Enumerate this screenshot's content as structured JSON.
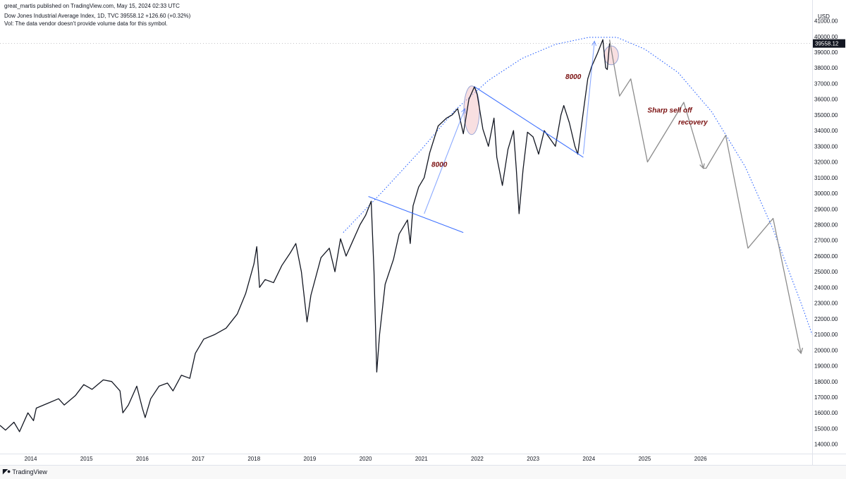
{
  "header": {
    "published": "great_martis published on TradingView.com, May 15, 2024 02:33 UTC",
    "symbol_line": "Dow Jones Industrial Average Index, 1D, TVC  39558.12  +126.60 (+0.32%)",
    "volume_note": "Vol: The data vendor doesn't provide volume data for this symbol."
  },
  "footer": {
    "brand": "TradingView",
    "logo_icon": "tradingview-logo-icon"
  },
  "colors": {
    "price": "#131722",
    "trend": "#2962ff",
    "projection": "#8c8c8c",
    "arc": "#2962ff",
    "annotation": "#7a1010",
    "circle": "#f2c4c8"
  },
  "chart_data": {
    "type": "line",
    "title": "",
    "xlabel": "",
    "ylabel": "USD",
    "currency": "USD",
    "last_price": "39558.12",
    "x_ticks": [
      "2014",
      "2015",
      "2016",
      "2017",
      "2018",
      "2019",
      "2020",
      "2021",
      "2022",
      "2023",
      "2024",
      "2025",
      "2026"
    ],
    "y_ticks": [
      "14000.00",
      "15000.00",
      "16000.00",
      "17000.00",
      "18000.00",
      "19000.00",
      "20000.00",
      "21000.00",
      "22000.00",
      "23000.00",
      "24000.00",
      "25000.00",
      "26000.00",
      "27000.00",
      "28000.00",
      "29000.00",
      "30000.00",
      "31000.00",
      "32000.00",
      "33000.00",
      "34000.00",
      "35000.00",
      "36000.00",
      "37000.00",
      "38000.00",
      "39000.00",
      "40000.00",
      "41000.00"
    ],
    "ylim": [
      13400,
      41700
    ],
    "xlim": [
      2013.45,
      2028.0
    ],
    "series": [
      {
        "kind": "price",
        "points": [
          [
            2013.45,
            15200
          ],
          [
            2013.55,
            14900
          ],
          [
            2013.7,
            15400
          ],
          [
            2013.8,
            14800
          ],
          [
            2013.95,
            16000
          ],
          [
            2014.05,
            15500
          ],
          [
            2014.1,
            16300
          ],
          [
            2014.3,
            16600
          ],
          [
            2014.5,
            16900
          ],
          [
            2014.6,
            16500
          ],
          [
            2014.8,
            17100
          ],
          [
            2014.95,
            17800
          ],
          [
            2015.1,
            17500
          ],
          [
            2015.3,
            18100
          ],
          [
            2015.45,
            18000
          ],
          [
            2015.6,
            17400
          ],
          [
            2015.65,
            16000
          ],
          [
            2015.75,
            16500
          ],
          [
            2015.9,
            17700
          ],
          [
            2016.0,
            16300
          ],
          [
            2016.05,
            15700
          ],
          [
            2016.15,
            16900
          ],
          [
            2016.3,
            17700
          ],
          [
            2016.45,
            17900
          ],
          [
            2016.55,
            17400
          ],
          [
            2016.7,
            18400
          ],
          [
            2016.85,
            18200
          ],
          [
            2016.95,
            19800
          ],
          [
            2017.1,
            20700
          ],
          [
            2017.3,
            21000
          ],
          [
            2017.5,
            21400
          ],
          [
            2017.7,
            22300
          ],
          [
            2017.85,
            23600
          ],
          [
            2018.0,
            25500
          ],
          [
            2018.05,
            26600
          ],
          [
            2018.1,
            24000
          ],
          [
            2018.2,
            24500
          ],
          [
            2018.35,
            24300
          ],
          [
            2018.5,
            25400
          ],
          [
            2018.65,
            26200
          ],
          [
            2018.75,
            26800
          ],
          [
            2018.85,
            25000
          ],
          [
            2018.95,
            21800
          ],
          [
            2019.02,
            23500
          ],
          [
            2019.2,
            25900
          ],
          [
            2019.35,
            26500
          ],
          [
            2019.45,
            25000
          ],
          [
            2019.55,
            27100
          ],
          [
            2019.65,
            26000
          ],
          [
            2019.75,
            26800
          ],
          [
            2019.9,
            28000
          ],
          [
            2020.0,
            28600
          ],
          [
            2020.1,
            29500
          ],
          [
            2020.15,
            25000
          ],
          [
            2020.2,
            18600
          ],
          [
            2020.25,
            21000
          ],
          [
            2020.35,
            24200
          ],
          [
            2020.5,
            25800
          ],
          [
            2020.6,
            27400
          ],
          [
            2020.75,
            28300
          ],
          [
            2020.8,
            26800
          ],
          [
            2020.85,
            29200
          ],
          [
            2020.95,
            30400
          ],
          [
            2021.05,
            31000
          ],
          [
            2021.15,
            32600
          ],
          [
            2021.3,
            34300
          ],
          [
            2021.45,
            34800
          ],
          [
            2021.55,
            35000
          ],
          [
            2021.65,
            35400
          ],
          [
            2021.75,
            33800
          ],
          [
            2021.85,
            36000
          ],
          [
            2021.95,
            36800
          ],
          [
            2022.0,
            36300
          ],
          [
            2022.1,
            34100
          ],
          [
            2022.2,
            33000
          ],
          [
            2022.3,
            34800
          ],
          [
            2022.35,
            32300
          ],
          [
            2022.45,
            30500
          ],
          [
            2022.55,
            32800
          ],
          [
            2022.65,
            34000
          ],
          [
            2022.7,
            31500
          ],
          [
            2022.75,
            28700
          ],
          [
            2022.82,
            31500
          ],
          [
            2022.9,
            33900
          ],
          [
            2023.0,
            33600
          ],
          [
            2023.1,
            32500
          ],
          [
            2023.2,
            34000
          ],
          [
            2023.3,
            33500
          ],
          [
            2023.4,
            33000
          ],
          [
            2023.5,
            35000
          ],
          [
            2023.55,
            35600
          ],
          [
            2023.65,
            34500
          ],
          [
            2023.75,
            33000
          ],
          [
            2023.8,
            32500
          ],
          [
            2023.9,
            35200
          ],
          [
            2023.98,
            37300
          ],
          [
            2024.05,
            38100
          ],
          [
            2024.15,
            38900
          ],
          [
            2024.25,
            39800
          ],
          [
            2024.3,
            38000
          ],
          [
            2024.33,
            37900
          ],
          [
            2024.37,
            39558
          ]
        ]
      },
      {
        "kind": "projection",
        "points": [
          [
            2024.37,
            39800
          ],
          [
            2024.55,
            36200
          ],
          [
            2024.75,
            37300
          ],
          [
            2025.05,
            32000
          ],
          [
            2025.7,
            35800
          ],
          [
            2026.05,
            31600
          ],
          [
            2026.1,
            31600
          ],
          [
            2026.45,
            33700
          ],
          [
            2026.85,
            26500
          ],
          [
            2027.3,
            28400
          ],
          [
            2027.8,
            19800
          ]
        ]
      }
    ],
    "trendlines": [
      [
        [
          2020.05,
          29800
        ],
        [
          2021.75,
          27500
        ]
      ],
      [
        [
          2021.95,
          36800
        ],
        [
          2023.9,
          32300
        ]
      ],
      [
        [
          2021.05,
          28700
        ],
        [
          2021.78,
          35400
        ]
      ],
      [
        [
          2023.9,
          32500
        ],
        [
          2024.1,
          39700
        ]
      ]
    ],
    "arc_points": [
      [
        2019.6,
        27500
      ],
      [
        2020.3,
        30100
      ],
      [
        2021.0,
        32800
      ],
      [
        2021.6,
        35300
      ],
      [
        2022.2,
        37200
      ],
      [
        2022.8,
        38600
      ],
      [
        2023.4,
        39500
      ],
      [
        2024.0,
        39950
      ],
      [
        2024.5,
        39950
      ],
      [
        2025.0,
        39200
      ],
      [
        2025.6,
        37700
      ],
      [
        2026.2,
        35200
      ],
      [
        2026.8,
        31700
      ],
      [
        2027.3,
        27700
      ],
      [
        2027.8,
        23000
      ],
      [
        2028.0,
        21000
      ]
    ],
    "circles": [
      {
        "x": 2021.9,
        "y": 35300,
        "rx_years": 0.14,
        "ry_value": 1550
      },
      {
        "x": 2024.4,
        "y": 38800,
        "rx_years": 0.13,
        "ry_value": 600
      }
    ],
    "annotations": [
      {
        "text": "8000",
        "x": 2021.18,
        "y": 31700
      },
      {
        "text": "8000",
        "x": 2023.58,
        "y": 37300
      },
      {
        "text": "Sharp sell off",
        "x": 2025.05,
        "y": 35150
      },
      {
        "text": "recovery",
        "x": 2025.6,
        "y": 34400
      }
    ]
  }
}
